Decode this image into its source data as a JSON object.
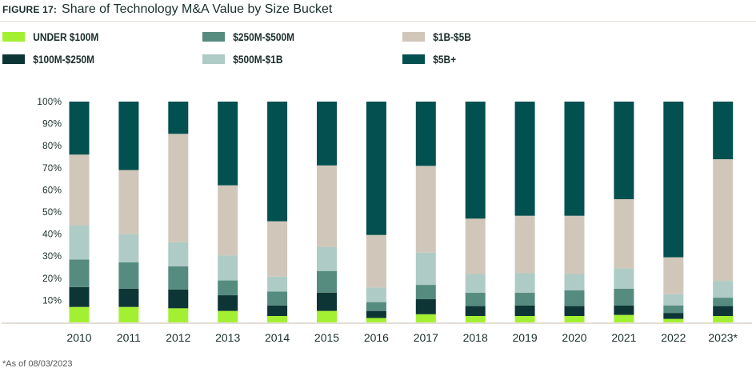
{
  "figure_label": "FIGURE 17:",
  "title": "Share of Technology M&A Value by Size Bucket",
  "footnote": "*As of 08/03/2023",
  "chart_data": {
    "type": "bar",
    "stacked": true,
    "normalized": true,
    "categories": [
      "2010",
      "2011",
      "2012",
      "2013",
      "2014",
      "2015",
      "2016",
      "2017",
      "2018",
      "2019",
      "2020",
      "2021",
      "2022",
      "2023*"
    ],
    "series": [
      {
        "name": "UNDER $100M",
        "color": "#a3f032",
        "values": [
          7.0,
          7.0,
          6.4,
          5.2,
          2.9,
          5.2,
          2.0,
          3.7,
          2.9,
          2.9,
          2.9,
          3.4,
          1.6,
          2.9
        ]
      },
      {
        "name": "$100M-$250M",
        "color": "#0e3535",
        "values": [
          9.0,
          8.3,
          8.5,
          7.1,
          4.8,
          8.3,
          3.2,
          6.8,
          4.5,
          4.8,
          4.5,
          4.3,
          2.7,
          4.5
        ]
      },
      {
        "name": "$250M-$500M",
        "color": "#568c80",
        "values": [
          12.5,
          11.9,
          10.5,
          6.7,
          6.3,
          9.8,
          4.0,
          6.5,
          6.0,
          5.7,
          7.1,
          7.6,
          3.4,
          3.8
        ]
      },
      {
        "name": "$500M-$1B",
        "color": "#aecbc5",
        "values": [
          15.5,
          12.8,
          10.9,
          11.3,
          6.7,
          10.9,
          6.6,
          14.6,
          8.5,
          8.9,
          7.4,
          9.2,
          5.1,
          7.6
        ]
      },
      {
        "name": "$1B-$5B",
        "color": "#d0c7ba",
        "values": [
          32.0,
          29.0,
          49.1,
          31.8,
          25.1,
          36.9,
          23.8,
          39.3,
          25.1,
          26.0,
          26.4,
          31.3,
          16.7,
          55.1
        ]
      },
      {
        "name": "$5B+",
        "color": "#02504f",
        "values": [
          24.0,
          31.0,
          14.6,
          37.9,
          54.2,
          28.9,
          60.4,
          29.1,
          53.0,
          51.7,
          51.7,
          44.2,
          70.5,
          26.1
        ]
      }
    ],
    "yticks": [
      "10%",
      "20%",
      "30%",
      "40%",
      "50%",
      "60%",
      "70%",
      "80%",
      "90%",
      "100%"
    ],
    "ylim": [
      0,
      100
    ],
    "xlabel": "",
    "ylabel": "",
    "legend_position": "top",
    "grid": false
  }
}
